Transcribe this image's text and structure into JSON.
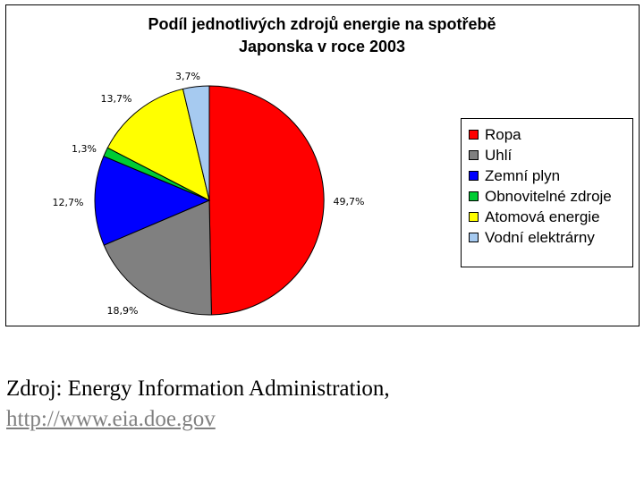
{
  "chart_data": {
    "type": "pie",
    "title_lines": [
      "Podíl jednotlivých zdrojů energie na spotřebě",
      "Japonska v roce 2003"
    ],
    "slices": [
      {
        "name": "Ropa",
        "value": 49.7,
        "label": "49,7%",
        "color": "#ff0000"
      },
      {
        "name": "Uhlí",
        "value": 18.9,
        "label": "18,9%",
        "color": "#808080"
      },
      {
        "name": "Zemní plyn",
        "value": 12.7,
        "label": "12,7%",
        "color": "#0000ff"
      },
      {
        "name": "Obnovitelné zdroje",
        "value": 1.3,
        "label": "1,3%",
        "color": "#00cc33"
      },
      {
        "name": "Atomová energie",
        "value": 13.7,
        "label": "13,7%",
        "color": "#ffff00"
      },
      {
        "name": "Vodní elektrárny",
        "value": 3.7,
        "label": "3,7%",
        "color": "#a6caf0"
      }
    ],
    "legend_position": "right"
  },
  "source": {
    "text": "Zdroj: Energy Information Administration,",
    "link": "http://www.eia.doe.gov"
  }
}
